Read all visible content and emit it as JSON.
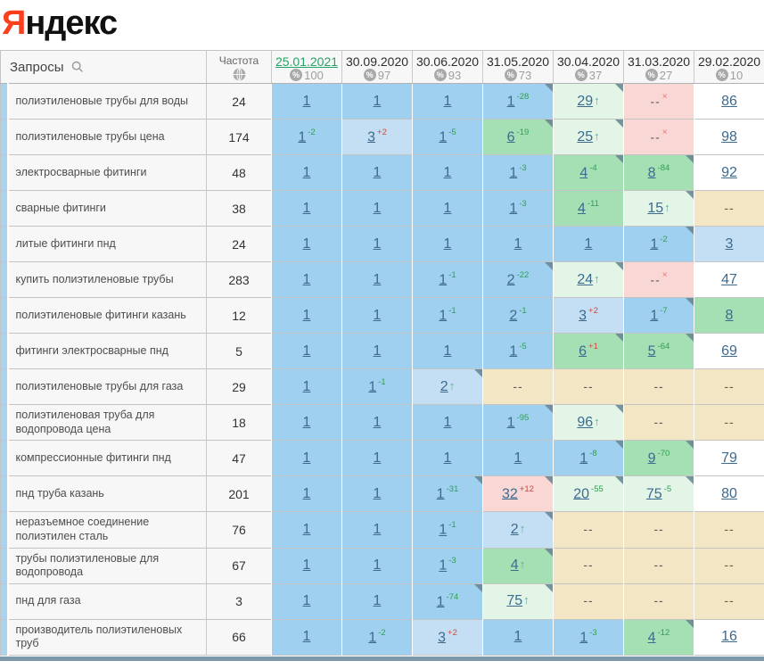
{
  "logo": {
    "first_letter": "Я",
    "rest": "ндекс"
  },
  "colors": {
    "band": "#a9d3ef",
    "blue": "#9fd0ef",
    "blue2": "#c4dff4",
    "green": "#a4e0b4",
    "green2": "#e2f5e7",
    "pink": "#f8d7d4",
    "tan": "#f3e6c4",
    "white": "#ffffff",
    "active_date_green": "#26a465",
    "delta_green": "#2fa052",
    "delta_red": "#d6453c",
    "corner_marker": "#64828f",
    "bottom_strip": "#7c98ab",
    "logo_red": "#fc3f1d"
  },
  "table": {
    "queries_header": "Запросы",
    "frequency_header": "Частота",
    "dates": [
      {
        "label": "25.01.2021",
        "visibility": "100",
        "active": true
      },
      {
        "label": "30.09.2020",
        "visibility": "97",
        "active": false
      },
      {
        "label": "30.06.2020",
        "visibility": "93",
        "active": false
      },
      {
        "label": "31.05.2020",
        "visibility": "73",
        "active": false
      },
      {
        "label": "30.04.2020",
        "visibility": "37",
        "active": false
      },
      {
        "label": "31.03.2020",
        "visibility": "27",
        "active": false
      },
      {
        "label": "29.02.2020",
        "visibility": "10",
        "active": false
      }
    ],
    "rows": [
      {
        "query": "полиэтиленовые трубы для воды",
        "frequency": "24",
        "cells": [
          {
            "pos": "1",
            "bg": "blue"
          },
          {
            "pos": "1",
            "bg": "blue"
          },
          {
            "pos": "1",
            "bg": "blue"
          },
          {
            "pos": "1",
            "delta": "-28",
            "bg": "blue",
            "corner": true
          },
          {
            "pos": "29",
            "arrow": true,
            "bg": "green2",
            "corner": true
          },
          {
            "pos": "--",
            "x": true,
            "bg": "pink"
          },
          {
            "pos": "86",
            "bg": "white"
          }
        ]
      },
      {
        "query": "полиэтиленовые трубы цена",
        "frequency": "174",
        "cells": [
          {
            "pos": "1",
            "delta": "-2",
            "bg": "blue"
          },
          {
            "pos": "3",
            "delta": "+2",
            "bg": "blue2"
          },
          {
            "pos": "1",
            "delta": "-5",
            "bg": "blue"
          },
          {
            "pos": "6",
            "delta": "-19",
            "bg": "green",
            "corner": true
          },
          {
            "pos": "25",
            "arrow": true,
            "bg": "green2",
            "corner": true
          },
          {
            "pos": "--",
            "x": true,
            "bg": "pink"
          },
          {
            "pos": "98",
            "bg": "white"
          }
        ]
      },
      {
        "query": "электросварные фитинги",
        "frequency": "48",
        "cells": [
          {
            "pos": "1",
            "bg": "blue"
          },
          {
            "pos": "1",
            "bg": "blue"
          },
          {
            "pos": "1",
            "bg": "blue"
          },
          {
            "pos": "1",
            "delta": "-3",
            "bg": "blue"
          },
          {
            "pos": "4",
            "delta": "-4",
            "bg": "green",
            "corner": true
          },
          {
            "pos": "8",
            "delta": "-84",
            "bg": "green",
            "corner": true
          },
          {
            "pos": "92",
            "bg": "white"
          }
        ]
      },
      {
        "query": "сварные фитинги",
        "frequency": "38",
        "cells": [
          {
            "pos": "1",
            "bg": "blue"
          },
          {
            "pos": "1",
            "bg": "blue"
          },
          {
            "pos": "1",
            "bg": "blue"
          },
          {
            "pos": "1",
            "delta": "-3",
            "bg": "blue"
          },
          {
            "pos": "4",
            "delta": "-11",
            "bg": "green"
          },
          {
            "pos": "15",
            "arrow": true,
            "bg": "green2",
            "corner": true
          },
          {
            "pos": "--",
            "bg": "tan"
          }
        ]
      },
      {
        "query": "литые фитинги пнд",
        "frequency": "24",
        "cells": [
          {
            "pos": "1",
            "bg": "blue"
          },
          {
            "pos": "1",
            "bg": "blue"
          },
          {
            "pos": "1",
            "bg": "blue"
          },
          {
            "pos": "1",
            "bg": "blue"
          },
          {
            "pos": "1",
            "bg": "blue"
          },
          {
            "pos": "1",
            "delta": "-2",
            "bg": "blue",
            "corner": true
          },
          {
            "pos": "3",
            "bg": "blue2"
          }
        ]
      },
      {
        "query": "купить полиэтиленовые трубы",
        "frequency": "283",
        "cells": [
          {
            "pos": "1",
            "bg": "blue"
          },
          {
            "pos": "1",
            "bg": "blue"
          },
          {
            "pos": "1",
            "delta": "-1",
            "bg": "blue"
          },
          {
            "pos": "2",
            "delta": "-22",
            "bg": "blue",
            "corner": true
          },
          {
            "pos": "24",
            "arrow": true,
            "bg": "green2",
            "corner": true
          },
          {
            "pos": "--",
            "x": true,
            "bg": "pink"
          },
          {
            "pos": "47",
            "bg": "white"
          }
        ]
      },
      {
        "query": "полиэтиленовые фитинги казань",
        "frequency": "12",
        "cells": [
          {
            "pos": "1",
            "bg": "blue"
          },
          {
            "pos": "1",
            "bg": "blue"
          },
          {
            "pos": "1",
            "delta": "-1",
            "bg": "blue"
          },
          {
            "pos": "2",
            "delta": "-1",
            "bg": "blue"
          },
          {
            "pos": "3",
            "delta": "+2",
            "bg": "blue2"
          },
          {
            "pos": "1",
            "delta": "-7",
            "bg": "blue",
            "corner": true
          },
          {
            "pos": "8",
            "bg": "green"
          }
        ]
      },
      {
        "query": "фитинги электросварные пнд",
        "frequency": "5",
        "cells": [
          {
            "pos": "1",
            "bg": "blue"
          },
          {
            "pos": "1",
            "bg": "blue"
          },
          {
            "pos": "1",
            "bg": "blue"
          },
          {
            "pos": "1",
            "delta": "-5",
            "bg": "blue"
          },
          {
            "pos": "6",
            "delta": "+1",
            "bg": "green",
            "corner": true
          },
          {
            "pos": "5",
            "delta": "-64",
            "bg": "green",
            "corner": true
          },
          {
            "pos": "69",
            "bg": "white"
          }
        ]
      },
      {
        "query": "полиэтиленовые трубы для газа",
        "frequency": "29",
        "cells": [
          {
            "pos": "1",
            "bg": "blue"
          },
          {
            "pos": "1",
            "delta": "-1",
            "bg": "blue"
          },
          {
            "pos": "2",
            "arrow": true,
            "bg": "blue2",
            "corner": true
          },
          {
            "pos": "--",
            "bg": "tan"
          },
          {
            "pos": "--",
            "bg": "tan"
          },
          {
            "pos": "--",
            "bg": "tan"
          },
          {
            "pos": "--",
            "bg": "tan"
          }
        ]
      },
      {
        "query": "полиэтиленовая труба для водопровода цена",
        "frequency": "18",
        "cells": [
          {
            "pos": "1",
            "bg": "blue"
          },
          {
            "pos": "1",
            "bg": "blue"
          },
          {
            "pos": "1",
            "bg": "blue"
          },
          {
            "pos": "1",
            "delta": "-95",
            "bg": "blue",
            "corner": true
          },
          {
            "pos": "96",
            "arrow": true,
            "bg": "green2",
            "corner": true
          },
          {
            "pos": "--",
            "bg": "tan"
          },
          {
            "pos": "--",
            "bg": "tan"
          }
        ]
      },
      {
        "query": "компрессионные фитинги пнд",
        "frequency": "47",
        "cells": [
          {
            "pos": "1",
            "bg": "blue"
          },
          {
            "pos": "1",
            "bg": "blue"
          },
          {
            "pos": "1",
            "bg": "blue"
          },
          {
            "pos": "1",
            "bg": "blue"
          },
          {
            "pos": "1",
            "delta": "-8",
            "bg": "blue",
            "corner": true
          },
          {
            "pos": "9",
            "delta": "-70",
            "bg": "green",
            "corner": true
          },
          {
            "pos": "79",
            "bg": "white"
          }
        ]
      },
      {
        "query": "пнд труба казань",
        "frequency": "201",
        "cells": [
          {
            "pos": "1",
            "bg": "blue"
          },
          {
            "pos": "1",
            "bg": "blue"
          },
          {
            "pos": "1",
            "delta": "-31",
            "bg": "blue",
            "corner": true
          },
          {
            "pos": "32",
            "delta": "+12",
            "bg": "pink",
            "corner": true
          },
          {
            "pos": "20",
            "delta": "-55",
            "bg": "green2",
            "corner": true
          },
          {
            "pos": "75",
            "delta": "-5",
            "bg": "green2",
            "corner": true
          },
          {
            "pos": "80",
            "bg": "white"
          }
        ]
      },
      {
        "query": "неразъемное соединение полиэтилен сталь",
        "frequency": "76",
        "cells": [
          {
            "pos": "1",
            "bg": "blue"
          },
          {
            "pos": "1",
            "bg": "blue"
          },
          {
            "pos": "1",
            "delta": "-1",
            "bg": "blue"
          },
          {
            "pos": "2",
            "arrow": true,
            "bg": "blue2",
            "corner": true
          },
          {
            "pos": "--",
            "bg": "tan"
          },
          {
            "pos": "--",
            "bg": "tan"
          },
          {
            "pos": "--",
            "bg": "tan"
          }
        ]
      },
      {
        "query": "трубы полиэтиленовые для водопровода",
        "frequency": "67",
        "cells": [
          {
            "pos": "1",
            "bg": "blue"
          },
          {
            "pos": "1",
            "bg": "blue"
          },
          {
            "pos": "1",
            "delta": "-3",
            "bg": "blue"
          },
          {
            "pos": "4",
            "arrow": true,
            "bg": "green",
            "corner": true
          },
          {
            "pos": "--",
            "bg": "tan"
          },
          {
            "pos": "--",
            "bg": "tan"
          },
          {
            "pos": "--",
            "bg": "tan"
          }
        ]
      },
      {
        "query": "пнд для газа",
        "frequency": "3",
        "cells": [
          {
            "pos": "1",
            "bg": "blue"
          },
          {
            "pos": "1",
            "bg": "blue"
          },
          {
            "pos": "1",
            "delta": "-74",
            "bg": "blue",
            "corner": true
          },
          {
            "pos": "75",
            "arrow": true,
            "bg": "green2",
            "corner": true
          },
          {
            "pos": "--",
            "bg": "tan"
          },
          {
            "pos": "--",
            "bg": "tan"
          },
          {
            "pos": "--",
            "bg": "tan"
          }
        ]
      },
      {
        "query": "производитель полиэтиленовых труб",
        "frequency": "66",
        "cells": [
          {
            "pos": "1",
            "bg": "blue"
          },
          {
            "pos": "1",
            "delta": "-2",
            "bg": "blue"
          },
          {
            "pos": "3",
            "delta": "+2",
            "bg": "blue2"
          },
          {
            "pos": "1",
            "bg": "blue"
          },
          {
            "pos": "1",
            "delta": "-3",
            "bg": "blue"
          },
          {
            "pos": "4",
            "delta": "-12",
            "bg": "green",
            "corner": true
          },
          {
            "pos": "16",
            "bg": "white"
          }
        ]
      }
    ]
  }
}
